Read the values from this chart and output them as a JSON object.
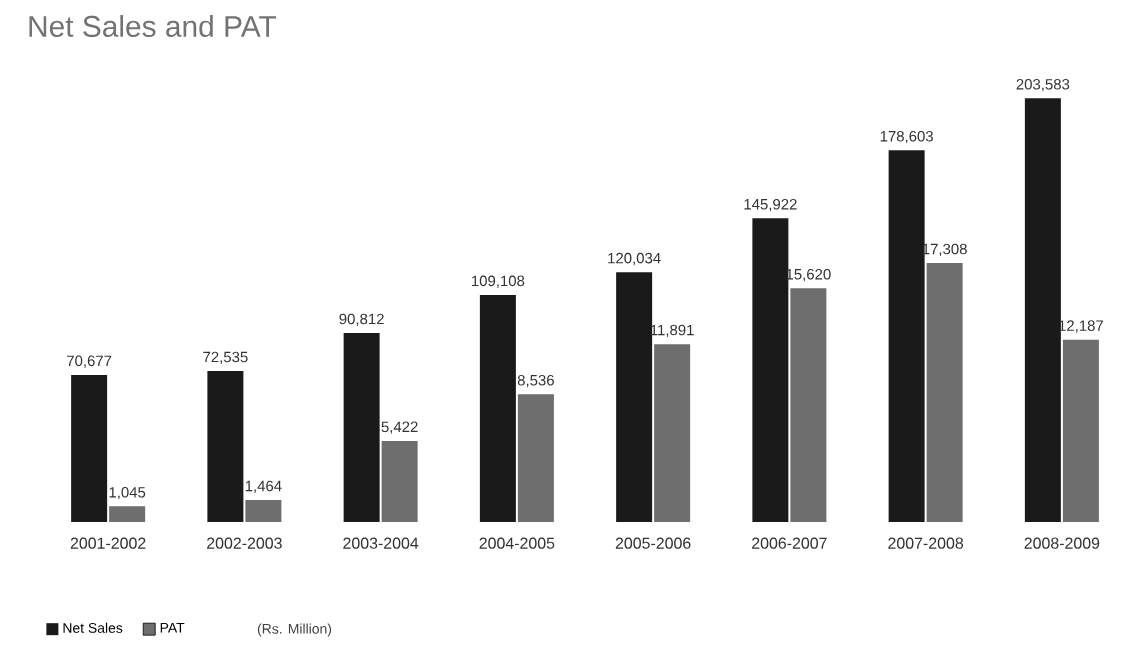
{
  "chart_data": {
    "type": "bar",
    "title": "Net Sales and PAT",
    "categories": [
      "2001-2002",
      "2002-2003",
      "2003-2004",
      "2004-2005",
      "2005-2006",
      "2006-2007",
      "2007-2008",
      "2008-2009"
    ],
    "series": [
      {
        "name": "Net Sales",
        "color": "#1a1a1a",
        "values": [
          70677,
          72535,
          90812,
          109108,
          120034,
          145922,
          178603,
          203583
        ],
        "value_labels": [
          "70,677",
          "72,535",
          "90,812",
          "109,108",
          "120,034",
          "145,922",
          "178,603",
          "203,583"
        ]
      },
      {
        "name": "PAT",
        "color": "#6e6e6e",
        "axis": "y2",
        "values": [
          1045,
          1464,
          5422,
          8536,
          11891,
          15620,
          17308,
          12187
        ],
        "value_labels": [
          "1,045",
          "1,464",
          "5,422",
          "8,536",
          "11,891",
          "15,620",
          "17,308",
          "12,187"
        ]
      }
    ],
    "legend": "bottom left",
    "annotations": [
      "(Rs. Million)"
    ]
  }
}
